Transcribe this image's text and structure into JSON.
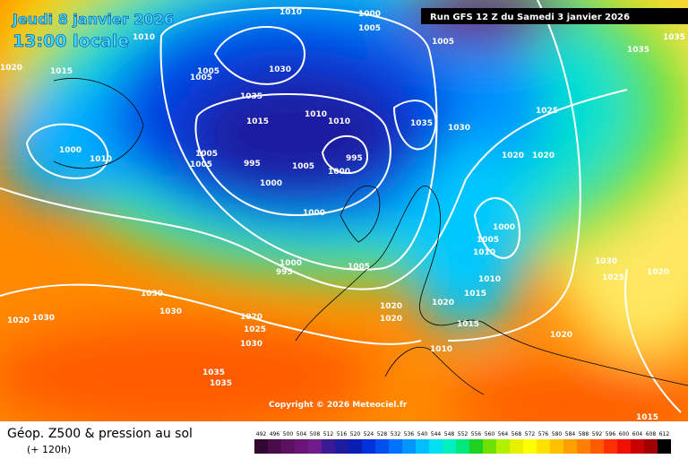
{
  "header": {
    "date": "Jeudi 8 janvier 2026",
    "time": "13:00 locale",
    "run": "Run GFS 12 Z du Samedi 3 janvier 2026"
  },
  "copyright": "Copyright © 2026 Meteociel.fr",
  "footer": {
    "title": "Géop. Z500 & pression au sol",
    "subtitle": "(+ 120h)"
  },
  "legend": {
    "values": [
      492,
      496,
      500,
      504,
      508,
      512,
      516,
      520,
      524,
      528,
      532,
      536,
      540,
      544,
      548,
      552,
      556,
      560,
      564,
      568,
      572,
      576,
      580,
      584,
      588,
      592,
      596,
      600,
      604,
      608,
      612
    ],
    "colors": [
      "#320832",
      "#4a0c4a",
      "#5c1060",
      "#6a1478",
      "#701c8c",
      "#3c1a96",
      "#1c1c9c",
      "#0a1eb4",
      "#0032dc",
      "#0050f0",
      "#0070ff",
      "#0096ff",
      "#00beff",
      "#00e0f0",
      "#00f0c0",
      "#00e87c",
      "#20d020",
      "#70e000",
      "#b0f000",
      "#e8f000",
      "#ffff00",
      "#ffe000",
      "#ffc000",
      "#ffa000",
      "#ff8000",
      "#ff5a00",
      "#ff3000",
      "#f01000",
      "#c80000",
      "#a00000",
      "#000000"
    ]
  },
  "isobar_labels": [
    "1010",
    "1010",
    "1000",
    "1005",
    "1005",
    "1035",
    "1035",
    "1020",
    "1015",
    "1005",
    "1005",
    "1030",
    "1035",
    "1015",
    "1010",
    "1010",
    "1035",
    "1030",
    "1025",
    "1000",
    "1010",
    "1005",
    "1005",
    "995",
    "1005",
    "1000",
    "995",
    "1000",
    "1000",
    "1020",
    "1000",
    "1005",
    "1000",
    "995",
    "1005",
    "1030",
    "1030",
    "1020",
    "1020",
    "1030",
    "1025",
    "1030",
    "1020",
    "1015",
    "1010",
    "1020",
    "1020",
    "1015",
    "1010",
    "1010",
    "1020",
    "1035",
    "1035",
    "1015",
    "1020",
    "1030",
    "1025",
    "1020"
  ]
}
